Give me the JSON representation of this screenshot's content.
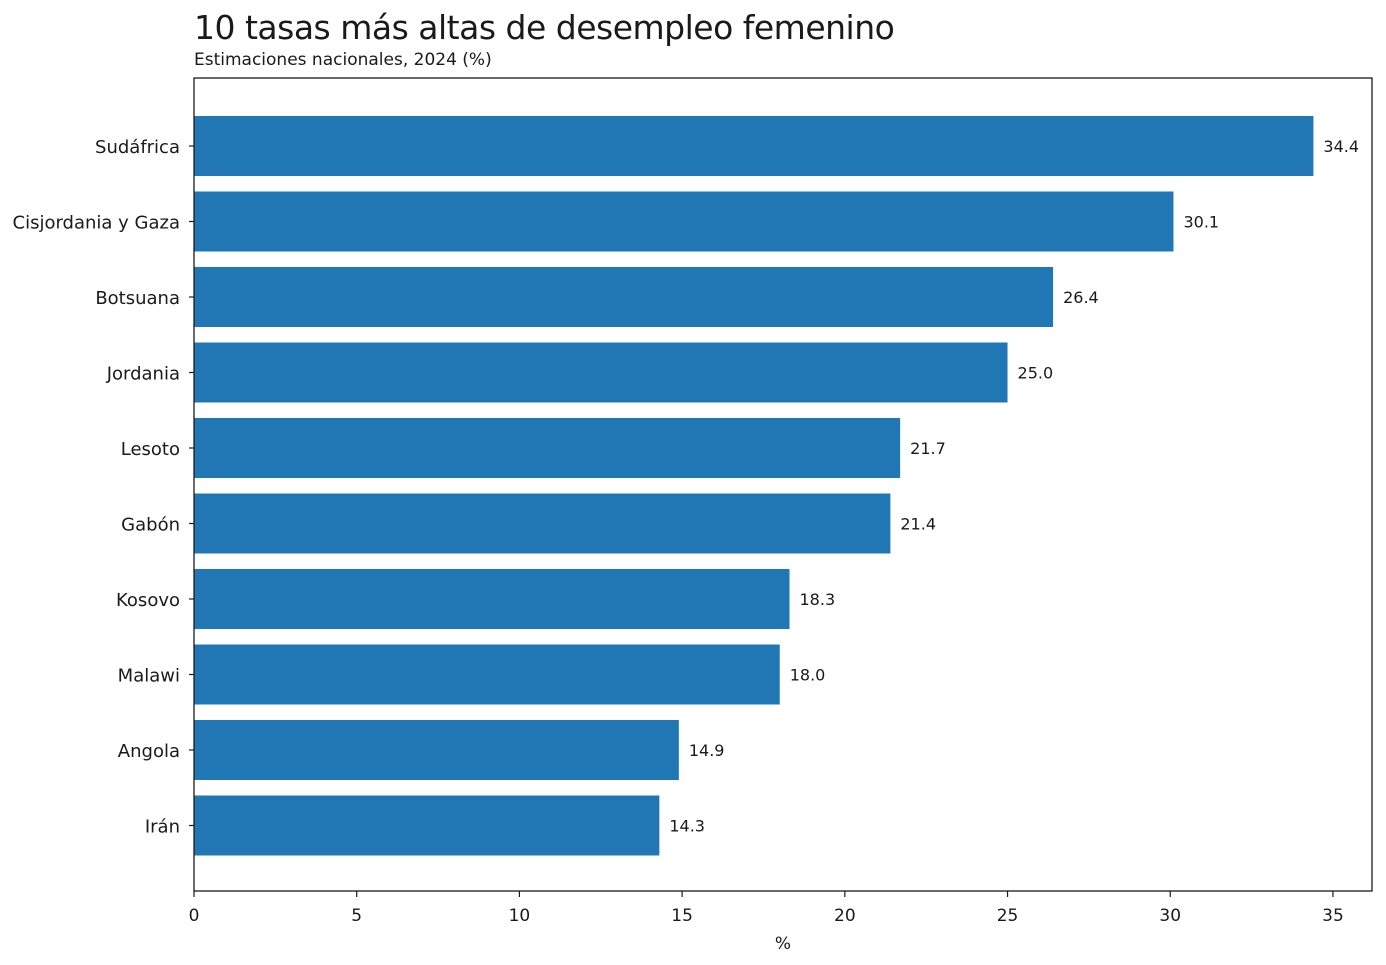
{
  "chart_data": {
    "type": "bar",
    "orientation": "horizontal",
    "title": "10 tasas más altas de desempleo femenino",
    "subtitle": "Estimaciones nacionales, 2024 (%)",
    "xlabel": "%",
    "ylabel": "",
    "xlim": [
      0,
      36.2
    ],
    "xticks": [
      0,
      5,
      10,
      15,
      20,
      25,
      30,
      35
    ],
    "grid": false,
    "bar_color": "#2077b4",
    "categories": [
      "Sudáfrica",
      "Cisjordania y Gaza",
      "Botsuana",
      "Jordania",
      "Lesoto",
      "Gabón",
      "Kosovo",
      "Malawi",
      "Angola",
      "Irán"
    ],
    "values": [
      34.4,
      30.1,
      26.4,
      25.0,
      21.7,
      21.4,
      18.3,
      18.0,
      14.9,
      14.3
    ],
    "value_labels": [
      "34.4",
      "30.1",
      "26.4",
      "25.0",
      "21.7",
      "21.4",
      "18.3",
      "18.0",
      "14.9",
      "14.3"
    ]
  }
}
